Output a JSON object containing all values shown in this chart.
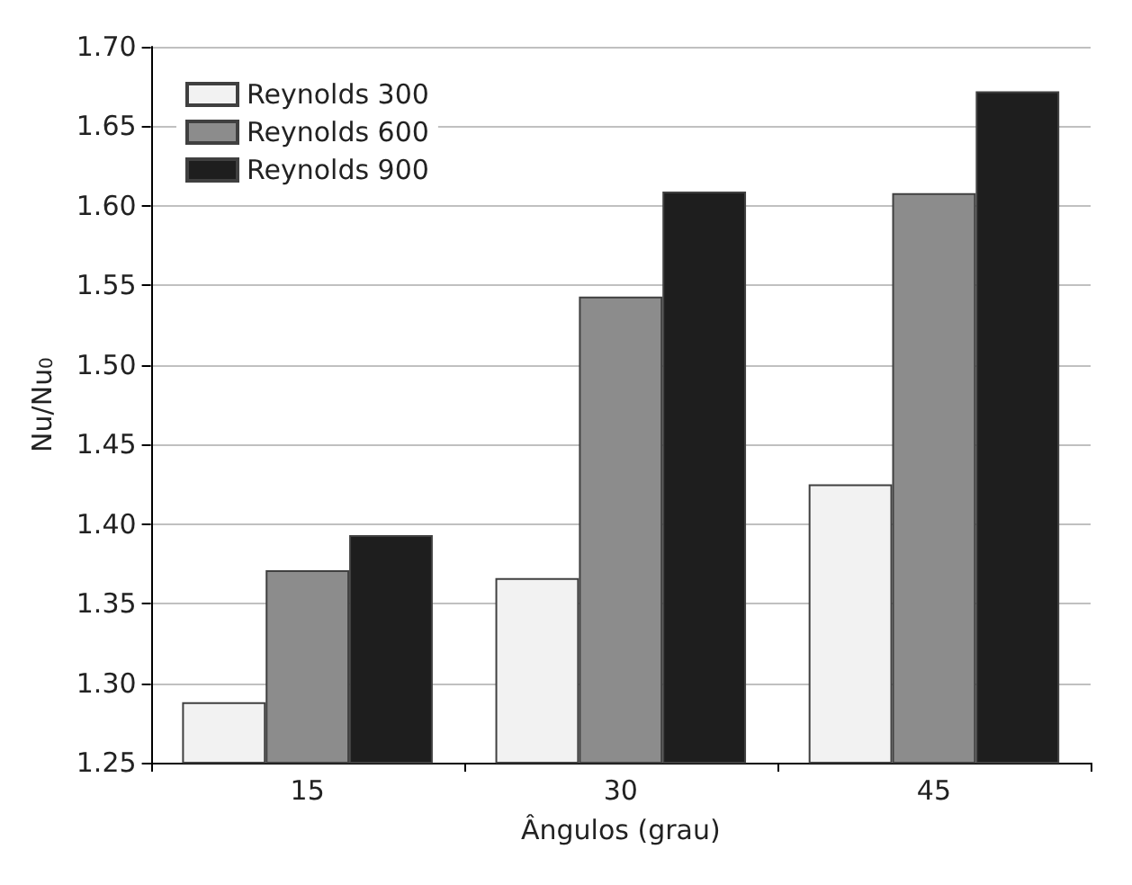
{
  "chart_data": {
    "type": "bar",
    "xlabel": "Ângulos (grau)",
    "ylabel": "Nu/Nu$_{0}$",
    "categories": [
      "15",
      "30",
      "45"
    ],
    "series": [
      {
        "name": "Reynolds 300",
        "color": "#f2f2f2",
        "values": [
          1.288,
          1.366,
          1.425
        ]
      },
      {
        "name": "Reynolds 600",
        "color": "#8c8c8c",
        "values": [
          1.371,
          1.543,
          1.608
        ]
      },
      {
        "name": "Reynolds 900",
        "color": "#1e1e1e",
        "values": [
          1.393,
          1.609,
          1.672
        ]
      }
    ],
    "ylim": [
      1.25,
      1.7
    ],
    "yticks": [
      1.25,
      {
        "value": 1.3,
        "label": "1.30"
      },
      1.35,
      {
        "value": 1.4,
        "label": "1.40"
      },
      1.45,
      {
        "value": 1.5,
        "label": "1.50"
      },
      1.55,
      {
        "value": 1.6,
        "label": "1.60"
      },
      1.65,
      {
        "value": 1.7,
        "label": "1.70"
      }
    ],
    "grid": "y",
    "legend": "top left"
  }
}
